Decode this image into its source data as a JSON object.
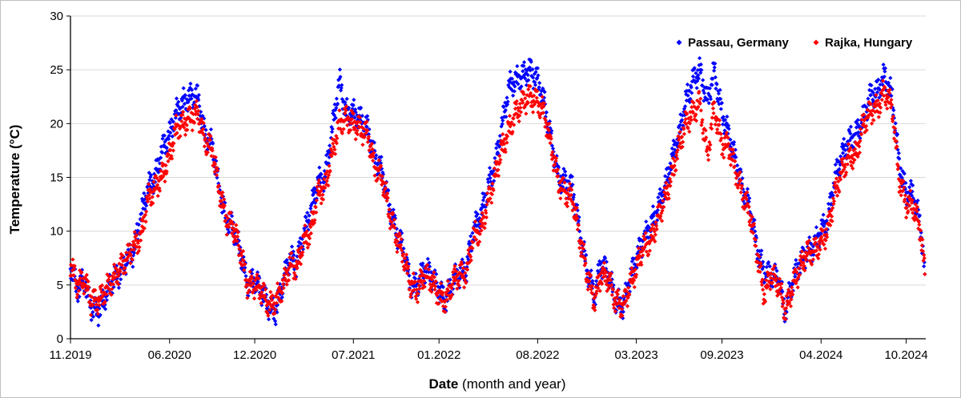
{
  "chart_data": {
    "type": "scatter",
    "ylabel": "Temperature (°C)",
    "xlabel_bold": "Date",
    "xlabel_rest": " (month and year)",
    "ylim": [
      0,
      30
    ],
    "yticks": [
      0,
      5,
      10,
      15,
      20,
      25,
      30
    ],
    "xlim": [
      "2019-11-01",
      "2024-11-12"
    ],
    "xticks": [
      {
        "label": "11.2019",
        "date": "2019-11-01"
      },
      {
        "label": "06.2020",
        "date": "2020-06-01"
      },
      {
        "label": "12.2020",
        "date": "2020-12-01"
      },
      {
        "label": "07.2021",
        "date": "2021-07-01"
      },
      {
        "label": "01.2022",
        "date": "2022-01-01"
      },
      {
        "label": "08.2022",
        "date": "2022-08-01"
      },
      {
        "label": "03.2023",
        "date": "2023-03-01"
      },
      {
        "label": "09.2023",
        "date": "2023-09-01"
      },
      {
        "label": "04.2024",
        "date": "2024-04-01"
      },
      {
        "label": "10.2024",
        "date": "2024-10-01"
      }
    ],
    "grid": "horizontal",
    "legend": "top-right",
    "series": [
      {
        "name": "Passau, Germany",
        "color": "#0000ff",
        "x": [
          "2019-11-01",
          "2019-11-15",
          "2019-12-01",
          "2019-12-15",
          "2020-01-01",
          "2020-01-15",
          "2020-02-01",
          "2020-02-15",
          "2020-03-01",
          "2020-03-15",
          "2020-04-01",
          "2020-04-15",
          "2020-05-01",
          "2020-05-15",
          "2020-06-01",
          "2020-06-15",
          "2020-07-01",
          "2020-07-15",
          "2020-08-01",
          "2020-08-15",
          "2020-09-01",
          "2020-09-15",
          "2020-10-01",
          "2020-10-15",
          "2020-11-01",
          "2020-11-15",
          "2020-12-01",
          "2020-12-15",
          "2021-01-01",
          "2021-01-15",
          "2021-02-01",
          "2021-02-15",
          "2021-03-01",
          "2021-03-15",
          "2021-04-01",
          "2021-04-15",
          "2021-05-01",
          "2021-05-15",
          "2021-06-01",
          "2021-06-15",
          "2021-07-01",
          "2021-07-15",
          "2021-08-01",
          "2021-08-15",
          "2021-09-01",
          "2021-09-15",
          "2021-10-01",
          "2021-10-15",
          "2021-11-01",
          "2021-11-15",
          "2021-12-01",
          "2021-12-15",
          "2022-01-01",
          "2022-01-15",
          "2022-02-01",
          "2022-02-15",
          "2022-03-01",
          "2022-03-15",
          "2022-04-01",
          "2022-04-15",
          "2022-05-01",
          "2022-05-15",
          "2022-06-01",
          "2022-06-15",
          "2022-07-01",
          "2022-07-15",
          "2022-08-01",
          "2022-08-15",
          "2022-09-01",
          "2022-09-15",
          "2022-10-01",
          "2022-10-15",
          "2022-11-01",
          "2022-11-15",
          "2022-12-01",
          "2022-12-15",
          "2023-01-01",
          "2023-01-15",
          "2023-02-01",
          "2023-02-15",
          "2023-03-01",
          "2023-03-15",
          "2023-04-01",
          "2023-04-15",
          "2023-05-01",
          "2023-05-15",
          "2023-06-01",
          "2023-06-15",
          "2023-07-01",
          "2023-07-15",
          "2023-08-01",
          "2023-08-15",
          "2023-09-01",
          "2023-09-15",
          "2023-10-01",
          "2023-10-15",
          "2023-11-01",
          "2023-11-15",
          "2023-12-01",
          "2023-12-15",
          "2024-01-01",
          "2024-01-15",
          "2024-02-01",
          "2024-02-15",
          "2024-03-01",
          "2024-03-15",
          "2024-04-01",
          "2024-04-15",
          "2024-05-01",
          "2024-05-15",
          "2024-06-01",
          "2024-06-15",
          "2024-07-01",
          "2024-07-15",
          "2024-08-01",
          "2024-08-15",
          "2024-09-01",
          "2024-09-15",
          "2024-10-01",
          "2024-10-15",
          "2024-11-01",
          "2024-11-10"
        ],
        "y": [
          7.0,
          4.5,
          5.5,
          3.0,
          2.5,
          4.0,
          5.5,
          6.0,
          7.5,
          8.0,
          11.5,
          14.0,
          15.0,
          17.5,
          19.0,
          21.0,
          22.0,
          22.5,
          22.5,
          19.0,
          18.0,
          14.0,
          11.0,
          10.5,
          8.0,
          5.0,
          5.5,
          4.5,
          3.0,
          2.5,
          5.5,
          7.5,
          7.0,
          9.5,
          12.0,
          14.5,
          15.0,
          19.0,
          24.0,
          21.0,
          21.0,
          20.5,
          19.5,
          17.0,
          15.5,
          12.5,
          10.0,
          8.5,
          5.0,
          5.0,
          6.5,
          6.0,
          4.5,
          3.5,
          5.5,
          6.0,
          6.5,
          10.0,
          11.5,
          14.0,
          16.0,
          19.5,
          23.5,
          24.0,
          24.5,
          25.0,
          24.0,
          22.0,
          18.0,
          15.0,
          14.5,
          14.0,
          9.5,
          6.5,
          4.0,
          7.0,
          6.0,
          3.5,
          3.0,
          5.5,
          7.5,
          9.0,
          10.5,
          12.0,
          14.0,
          16.5,
          19.0,
          22.0,
          24.0,
          25.0,
          22.0,
          25.0,
          21.0,
          19.0,
          16.5,
          14.0,
          12.0,
          8.5,
          6.0,
          6.0,
          5.5,
          2.5,
          5.5,
          7.0,
          8.0,
          8.5,
          10.0,
          11.0,
          15.0,
          17.0,
          18.5,
          19.0,
          20.5,
          22.5,
          23.0,
          24.5,
          22.5,
          16.5,
          13.5,
          13.5,
          10.5,
          6.0
        ]
      },
      {
        "name": "Rajka, Hungary",
        "color": "#ff0000",
        "x": [
          "2019-11-01",
          "2019-11-15",
          "2019-12-01",
          "2019-12-15",
          "2020-01-01",
          "2020-01-15",
          "2020-02-01",
          "2020-02-15",
          "2020-03-01",
          "2020-03-15",
          "2020-04-01",
          "2020-04-15",
          "2020-05-01",
          "2020-05-15",
          "2020-06-01",
          "2020-06-15",
          "2020-07-01",
          "2020-07-15",
          "2020-08-01",
          "2020-08-15",
          "2020-09-01",
          "2020-09-15",
          "2020-10-01",
          "2020-10-15",
          "2020-11-01",
          "2020-11-15",
          "2020-12-01",
          "2020-12-15",
          "2021-01-01",
          "2021-01-15",
          "2021-02-01",
          "2021-02-15",
          "2021-03-01",
          "2021-03-15",
          "2021-04-01",
          "2021-04-15",
          "2021-05-01",
          "2021-05-15",
          "2021-06-01",
          "2021-06-15",
          "2021-07-01",
          "2021-07-15",
          "2021-08-01",
          "2021-08-15",
          "2021-09-01",
          "2021-09-15",
          "2021-10-01",
          "2021-10-15",
          "2021-11-01",
          "2021-11-15",
          "2021-12-01",
          "2021-12-15",
          "2022-01-01",
          "2022-01-15",
          "2022-02-01",
          "2022-02-15",
          "2022-03-01",
          "2022-03-15",
          "2022-04-01",
          "2022-04-15",
          "2022-05-01",
          "2022-05-15",
          "2022-06-01",
          "2022-06-15",
          "2022-07-01",
          "2022-07-15",
          "2022-08-01",
          "2022-08-15",
          "2022-09-01",
          "2022-09-15",
          "2022-10-01",
          "2022-10-15",
          "2022-11-01",
          "2022-11-15",
          "2022-12-01",
          "2022-12-15",
          "2023-01-01",
          "2023-01-15",
          "2023-02-01",
          "2023-02-15",
          "2023-03-01",
          "2023-03-15",
          "2023-04-01",
          "2023-04-15",
          "2023-05-01",
          "2023-05-15",
          "2023-06-01",
          "2023-06-15",
          "2023-07-01",
          "2023-07-15",
          "2023-08-01",
          "2023-08-15",
          "2023-09-01",
          "2023-09-15",
          "2023-10-01",
          "2023-10-15",
          "2023-11-01",
          "2023-11-15",
          "2023-12-01",
          "2023-12-15",
          "2024-01-01",
          "2024-01-15",
          "2024-02-01",
          "2024-02-15",
          "2024-03-01",
          "2024-03-15",
          "2024-04-01",
          "2024-04-15",
          "2024-05-01",
          "2024-05-15",
          "2024-06-01",
          "2024-06-15",
          "2024-07-01",
          "2024-07-15",
          "2024-08-01",
          "2024-08-15",
          "2024-09-01",
          "2024-09-15",
          "2024-10-01",
          "2024-10-15",
          "2024-11-01",
          "2024-11-10"
        ],
        "y": [
          7.0,
          5.0,
          5.5,
          3.5,
          3.5,
          4.5,
          5.5,
          6.5,
          7.5,
          8.5,
          9.5,
          13.0,
          14.0,
          15.0,
          17.0,
          19.5,
          20.0,
          20.5,
          21.0,
          18.5,
          17.5,
          14.0,
          11.0,
          10.5,
          8.0,
          5.0,
          5.0,
          4.5,
          3.0,
          3.5,
          5.0,
          7.0,
          6.5,
          9.0,
          10.0,
          13.5,
          14.0,
          17.0,
          20.0,
          20.5,
          20.0,
          19.5,
          19.0,
          16.0,
          15.0,
          12.0,
          9.5,
          8.0,
          5.0,
          4.5,
          6.0,
          5.5,
          4.0,
          3.5,
          5.5,
          6.0,
          6.0,
          9.5,
          10.0,
          12.5,
          15.0,
          17.5,
          19.5,
          21.0,
          22.0,
          22.5,
          22.0,
          21.0,
          17.5,
          14.5,
          13.5,
          13.0,
          9.0,
          6.0,
          3.5,
          6.0,
          5.5,
          3.5,
          3.0,
          5.0,
          6.5,
          8.5,
          9.0,
          11.0,
          13.0,
          15.0,
          18.0,
          20.0,
          21.0,
          22.0,
          17.0,
          21.5,
          18.0,
          18.0,
          15.5,
          13.5,
          11.5,
          8.0,
          4.0,
          6.0,
          5.0,
          2.5,
          5.0,
          6.5,
          8.0,
          8.0,
          9.0,
          10.0,
          13.5,
          15.5,
          17.0,
          17.0,
          20.0,
          21.0,
          21.5,
          23.0,
          21.5,
          15.0,
          12.5,
          12.5,
          10.0,
          6.0
        ]
      }
    ]
  }
}
